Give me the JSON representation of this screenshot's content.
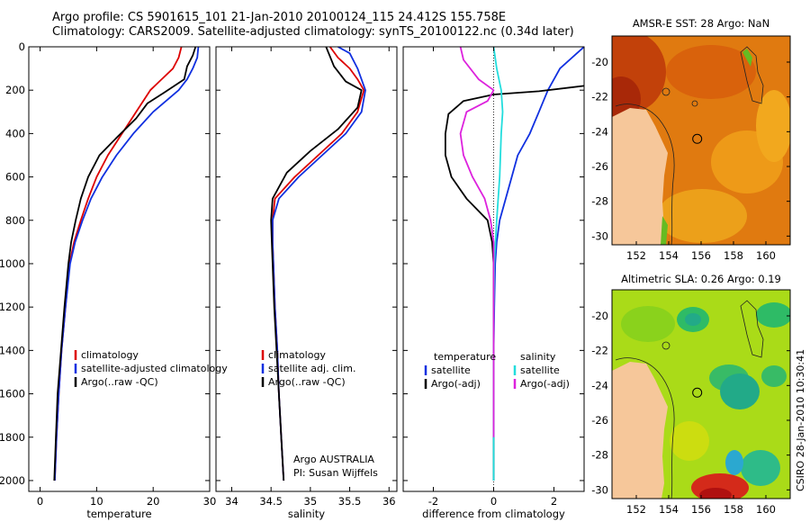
{
  "header": {
    "line1": "Argo profile: CS 5901615_101 21-Jan-2010 20100124_115 24.412S 155.758E",
    "line2": "Climatology: CARS2009. Satellite-adjusted climatology: synTS_20100122.nc (0.34d later)"
  },
  "credit": "CSIRO 28-Jan-2010 10:30:41",
  "colors": {
    "climatology": "#dd0000",
    "satellite": "#1030e0",
    "argo": "#000000",
    "salinity_satellite": "#22dddd",
    "salinity_argo": "#dd22dd",
    "land": "#f6c79a"
  },
  "chart_data": [
    {
      "id": "temperature",
      "type": "line",
      "xlabel": "temperature",
      "ylabel": "",
      "xlim": [
        -2,
        30
      ],
      "ylim": [
        2050,
        0
      ],
      "xticks": [
        0,
        10,
        20,
        30
      ],
      "yticks": [
        0,
        200,
        400,
        600,
        800,
        1000,
        1200,
        1400,
        1600,
        1800,
        2000
      ],
      "legend": [
        "climatology",
        "satellite-adjusted climatology",
        "Argo(..raw -QC)"
      ],
      "series": [
        {
          "name": "climatology",
          "color": "#dd0000",
          "points": [
            [
              25,
              0
            ],
            [
              24.5,
              50
            ],
            [
              23.5,
              100
            ],
            [
              21.5,
              150
            ],
            [
              19.5,
              200
            ],
            [
              17,
              300
            ],
            [
              14.5,
              400
            ],
            [
              12,
              500
            ],
            [
              10,
              600
            ],
            [
              8.5,
              700
            ],
            [
              7.2,
              800
            ],
            [
              6,
              900
            ],
            [
              5.2,
              1000
            ],
            [
              4.5,
              1200
            ],
            [
              3.8,
              1400
            ],
            [
              3.3,
              1600
            ],
            [
              2.9,
              1800
            ],
            [
              2.6,
              2000
            ]
          ]
        },
        {
          "name": "satellite-adjusted climatology",
          "color": "#1030e0",
          "points": [
            [
              28,
              0
            ],
            [
              27.8,
              50
            ],
            [
              27,
              100
            ],
            [
              26,
              150
            ],
            [
              24.5,
              200
            ],
            [
              20,
              300
            ],
            [
              16.5,
              400
            ],
            [
              13.5,
              500
            ],
            [
              11,
              600
            ],
            [
              9,
              700
            ],
            [
              7.5,
              800
            ],
            [
              6.2,
              900
            ],
            [
              5.3,
              1000
            ],
            [
              4.5,
              1200
            ],
            [
              3.8,
              1400
            ],
            [
              3.3,
              1600
            ],
            [
              2.9,
              1800
            ],
            [
              2.6,
              2000
            ]
          ]
        },
        {
          "name": "Argo(..raw -QC)",
          "color": "#000000",
          "points": [
            [
              27.5,
              0
            ],
            [
              27,
              40
            ],
            [
              26,
              90
            ],
            [
              25.5,
              150
            ],
            [
              22,
              210
            ],
            [
              19,
              260
            ],
            [
              17,
              330
            ],
            [
              13.5,
              420
            ],
            [
              10.5,
              500
            ],
            [
              8.5,
              600
            ],
            [
              7.2,
              700
            ],
            [
              6.3,
              800
            ],
            [
              5.5,
              900
            ],
            [
              5,
              1000
            ],
            [
              4.3,
              1200
            ],
            [
              3.7,
              1400
            ],
            [
              3.1,
              1600
            ],
            [
              2.8,
              1800
            ],
            [
              2.5,
              2000
            ]
          ]
        }
      ]
    },
    {
      "id": "salinity",
      "type": "line",
      "xlabel": "salinity",
      "ylabel": "",
      "xlim": [
        33.8,
        36.1
      ],
      "ylim": [
        2050,
        0
      ],
      "xticks": [
        34,
        34.5,
        35,
        35.5,
        36
      ],
      "yticks": [
        0,
        200,
        400,
        600,
        800,
        1000,
        1200,
        1400,
        1600,
        1800,
        2000
      ],
      "legend": [
        "climatology",
        "satellite adj. clim.",
        "Argo(..raw -QC)"
      ],
      "annotation": [
        "Argo AUSTRALIA",
        "PI: Susan Wijffels"
      ],
      "series": [
        {
          "name": "climatology",
          "color": "#dd0000",
          "points": [
            [
              35.25,
              0
            ],
            [
              35.35,
              50
            ],
            [
              35.5,
              100
            ],
            [
              35.6,
              150
            ],
            [
              35.68,
              200
            ],
            [
              35.6,
              300
            ],
            [
              35.4,
              400
            ],
            [
              35.1,
              500
            ],
            [
              34.8,
              600
            ],
            [
              34.55,
              700
            ],
            [
              34.52,
              800
            ],
            [
              34.52,
              900
            ],
            [
              34.53,
              1000
            ],
            [
              34.55,
              1200
            ],
            [
              34.58,
              1400
            ],
            [
              34.6,
              1600
            ],
            [
              34.63,
              1800
            ],
            [
              34.66,
              2000
            ]
          ]
        },
        {
          "name": "satellite adj. clim.",
          "color": "#1030e0",
          "points": [
            [
              35.35,
              0
            ],
            [
              35.5,
              30
            ],
            [
              35.6,
              100
            ],
            [
              35.7,
              200
            ],
            [
              35.65,
              300
            ],
            [
              35.45,
              400
            ],
            [
              35.15,
              500
            ],
            [
              34.85,
              600
            ],
            [
              34.6,
              700
            ],
            [
              34.52,
              800
            ],
            [
              34.52,
              900
            ],
            [
              34.53,
              1000
            ],
            [
              34.55,
              1200
            ],
            [
              34.58,
              1400
            ],
            [
              34.6,
              1600
            ],
            [
              34.63,
              1800
            ],
            [
              34.66,
              2000
            ]
          ]
        },
        {
          "name": "Argo(..raw -QC)",
          "color": "#000000",
          "points": [
            [
              35.2,
              0
            ],
            [
              35.3,
              90
            ],
            [
              35.45,
              160
            ],
            [
              35.65,
              200
            ],
            [
              35.6,
              280
            ],
            [
              35.35,
              380
            ],
            [
              35,
              480
            ],
            [
              34.7,
              580
            ],
            [
              34.52,
              700
            ],
            [
              34.5,
              800
            ],
            [
              34.51,
              900
            ],
            [
              34.52,
              1000
            ],
            [
              34.54,
              1200
            ],
            [
              34.57,
              1400
            ],
            [
              34.6,
              1600
            ],
            [
              34.63,
              1800
            ],
            [
              34.66,
              2000
            ]
          ]
        }
      ]
    },
    {
      "id": "difference",
      "type": "line",
      "xlabel": "difference from climatology",
      "ylabel": "",
      "xlim": [
        -3,
        3
      ],
      "ylim": [
        2050,
        0
      ],
      "xticks": [
        -2,
        0,
        2
      ],
      "yticks": [
        0,
        200,
        400,
        600,
        800,
        1000,
        1200,
        1400,
        1600,
        1800,
        2000
      ],
      "legend_temperature": [
        "temperature",
        "satellite",
        "Argo(-adj)"
      ],
      "legend_salinity": [
        "salinity",
        "satellite",
        "Argo(-adj)"
      ],
      "series": [
        {
          "name": "temperature satellite",
          "color": "#1030e0",
          "points": [
            [
              3,
              0
            ],
            [
              2.2,
              100
            ],
            [
              1.8,
              200
            ],
            [
              1.5,
              300
            ],
            [
              1.2,
              400
            ],
            [
              0.8,
              500
            ],
            [
              0.6,
              600
            ],
            [
              0.4,
              700
            ],
            [
              0.2,
              800
            ],
            [
              0.1,
              900
            ],
            [
              0.05,
              1000
            ],
            [
              0.02,
              1200
            ],
            [
              0,
              1400
            ],
            [
              0,
              1700
            ],
            [
              0,
              2000
            ]
          ]
        },
        {
          "name": "temperature Argo(-adj)",
          "color": "#000000",
          "points": [
            [
              3,
              180
            ],
            [
              1.5,
              205
            ],
            [
              0,
              220
            ],
            [
              -1,
              250
            ],
            [
              -1.5,
              310
            ],
            [
              -1.6,
              400
            ],
            [
              -1.6,
              500
            ],
            [
              -1.4,
              600
            ],
            [
              -0.9,
              700
            ],
            [
              -0.2,
              800
            ],
            [
              -0.05,
              900
            ],
            [
              0,
              1000
            ],
            [
              0,
              1200
            ],
            [
              0,
              1500
            ],
            [
              0,
              1800
            ],
            [
              0,
              2000
            ]
          ]
        },
        {
          "name": "salinity satellite",
          "color": "#22dddd",
          "points": [
            [
              0,
              0
            ],
            [
              0.1,
              100
            ],
            [
              0.25,
              200
            ],
            [
              0.3,
              300
            ],
            [
              0.25,
              400
            ],
            [
              0.2,
              600
            ],
            [
              0.1,
              800
            ],
            [
              0.02,
              1000
            ],
            [
              0,
              1300
            ],
            [
              0,
              1600
            ],
            [
              0,
              2000
            ]
          ]
        },
        {
          "name": "salinity Argo(-adj)",
          "color": "#dd22dd",
          "points": [
            [
              -1.1,
              0
            ],
            [
              -1,
              60
            ],
            [
              -0.5,
              150
            ],
            [
              0,
              200
            ],
            [
              -0.2,
              250
            ],
            [
              -0.9,
              300
            ],
            [
              -1.1,
              400
            ],
            [
              -1,
              500
            ],
            [
              -0.7,
              600
            ],
            [
              -0.3,
              700
            ],
            [
              -0.1,
              800
            ],
            [
              0,
              900
            ],
            [
              0,
              1100
            ],
            [
              0,
              1400
            ],
            [
              0,
              1800
            ]
          ]
        }
      ]
    },
    {
      "id": "sst-map",
      "type": "heatmap",
      "title": "AMSR-E SST: 28 Argo: NaN",
      "xlim": [
        150.5,
        161.5
      ],
      "ylim": [
        -30.5,
        -18.5
      ],
      "xticks": [
        152,
        154,
        156,
        158,
        160
      ],
      "yticks": [
        -20,
        -22,
        -24,
        -26,
        -28,
        -30
      ],
      "marker": [
        155.76,
        -24.41
      ]
    },
    {
      "id": "sla-map",
      "type": "heatmap",
      "title": "Altimetric SLA: 0.26 Argo: 0.19",
      "xlim": [
        150.5,
        161.5
      ],
      "ylim": [
        -30.5,
        -18.5
      ],
      "xticks": [
        152,
        154,
        156,
        158,
        160
      ],
      "yticks": [
        -20,
        -22,
        -24,
        -26,
        -28,
        -30
      ],
      "marker": [
        155.76,
        -24.41
      ]
    }
  ]
}
